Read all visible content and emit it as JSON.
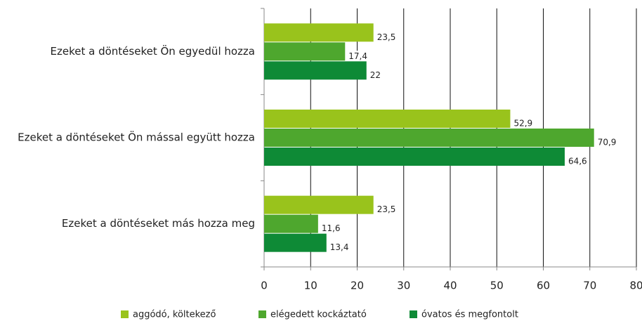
{
  "chart_data": {
    "type": "barh",
    "categories": [
      "Ezeket a döntéseket Ön egyedül hozza",
      "Ezeket a döntéseket Ön mással együtt hozza",
      "Ezeket a döntéseket más hozza meg"
    ],
    "series": [
      {
        "name": "aggódó, költekező",
        "color": "#99c31c",
        "values": [
          23.5,
          52.9,
          23.5
        ],
        "value_labels": [
          "23,5",
          "52,9",
          "23,5"
        ]
      },
      {
        "name": "elégedett kockáztató",
        "color": "#4ea72e",
        "values": [
          17.4,
          70.9,
          11.6
        ],
        "value_labels": [
          "17,4",
          "70,9",
          "11,6"
        ]
      },
      {
        "name": "óvatos és megfontolt",
        "color": "#0e8a36",
        "values": [
          22,
          64.6,
          13.4
        ],
        "value_labels": [
          "22",
          "64,6",
          "13,4"
        ]
      }
    ],
    "xlim": [
      0,
      80
    ],
    "xticks": [
      0,
      10,
      20,
      30,
      40,
      50,
      60,
      70,
      80
    ],
    "grid": true,
    "legend": "bottom"
  }
}
